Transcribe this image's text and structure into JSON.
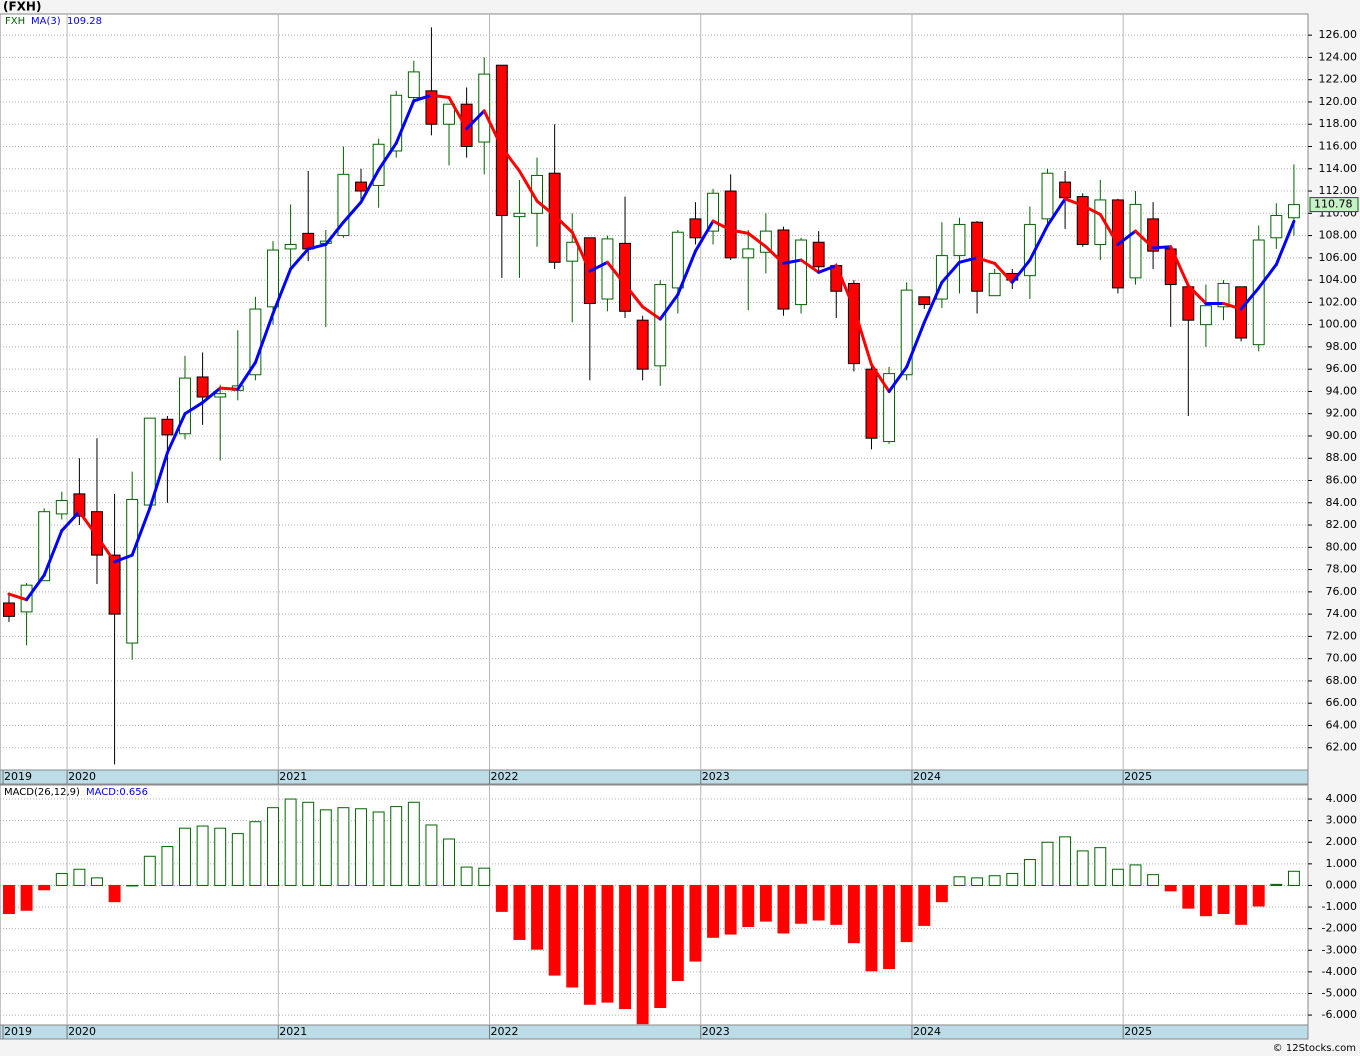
{
  "chart_data": [
    {
      "type": "candlestick",
      "title": "(FXH)",
      "xlim": [
        -0.51,
        73.8
      ],
      "xticks": [
        {
          "value": -0.34,
          "label": "2019"
        },
        {
          "value": 3.3,
          "label": "2020"
        },
        {
          "value": 15.3,
          "label": "2021"
        },
        {
          "value": 27.3,
          "label": "2022"
        },
        {
          "value": 39.3,
          "label": "2023"
        },
        {
          "value": 51.3,
          "label": "2024"
        },
        {
          "value": 63.3,
          "label": "2025"
        }
      ],
      "ylim": [
        60,
        127.9
      ],
      "yticks": [
        {
          "value": 62,
          "label": "62.00"
        },
        {
          "value": 64,
          "label": "64.00"
        },
        {
          "value": 66,
          "label": "66.00"
        },
        {
          "value": 68,
          "label": "68.00"
        },
        {
          "value": 70,
          "label": "70.00"
        },
        {
          "value": 72,
          "label": "72.00"
        },
        {
          "value": 74,
          "label": "74.00"
        },
        {
          "value": 76,
          "label": "76.00"
        },
        {
          "value": 78,
          "label": "78.00"
        },
        {
          "value": 80,
          "label": "80.00"
        },
        {
          "value": 82,
          "label": "82.00"
        },
        {
          "value": 84,
          "label": "84.00"
        },
        {
          "value": 86,
          "label": "86.00"
        },
        {
          "value": 88,
          "label": "88.00"
        },
        {
          "value": 90,
          "label": "90.00"
        },
        {
          "value": 92,
          "label": "92.00"
        },
        {
          "value": 94,
          "label": "94.00"
        },
        {
          "value": 96,
          "label": "96.00"
        },
        {
          "value": 98,
          "label": "98.00"
        },
        {
          "value": 100,
          "label": "100.00"
        },
        {
          "value": 102,
          "label": "102.00"
        },
        {
          "value": 104,
          "label": "104.00"
        },
        {
          "value": 106,
          "label": "106.00"
        },
        {
          "value": 108,
          "label": "108.00"
        },
        {
          "value": 110,
          "label": "110.00"
        },
        {
          "value": 112,
          "label": "112.00"
        },
        {
          "value": 114,
          "label": "114.00"
        },
        {
          "value": 116,
          "label": "116.00"
        },
        {
          "value": 118,
          "label": "118.00"
        },
        {
          "value": 120,
          "label": "120.00"
        },
        {
          "value": 122,
          "label": "122.00"
        },
        {
          "value": 124,
          "label": "124.00"
        },
        {
          "value": 126,
          "label": "126.00"
        }
      ],
      "grid": true,
      "series": [
        {
          "name": "FXH",
          "up_color": "#006400",
          "down_color": "#ff0000",
          "open": [
            75,
            74.2,
            77,
            83,
            84.8,
            83.2,
            79.3,
            71.4,
            83.8,
            91.5,
            90.2,
            95.3,
            93.5,
            94.1,
            95.5,
            101.6,
            106.8,
            108.2,
            107.3,
            108,
            112.8,
            112.5,
            115.6,
            120.4,
            121,
            118,
            119.8,
            116.4,
            123.3,
            109.7,
            110,
            113.6,
            105.7,
            107.8,
            102.3,
            107.3,
            100.4,
            96.3,
            103.3,
            109.5,
            108.4,
            112,
            106,
            106.5,
            108.5,
            101.8,
            107.4,
            105.3,
            103.7,
            96,
            89.5,
            95.5,
            102.5,
            102.3,
            106.2,
            109.2,
            102.6,
            104.6,
            104.4,
            109.5,
            112.8,
            111.5,
            107.2,
            111.2,
            104.2,
            109.5,
            106.8,
            103.4,
            100,
            101.6,
            103.4,
            98.2,
            107.8,
            109.6
          ],
          "high": [
            75.8,
            76.8,
            83.5,
            85,
            88,
            89.8,
            84.8,
            86.8,
            91.6,
            91.8,
            97.2,
            97.5,
            94.6,
            99.5,
            102.5,
            107.5,
            110.8,
            113.8,
            108.5,
            116,
            114,
            116.7,
            121,
            123.7,
            126.7,
            119.8,
            121.3,
            124,
            123.3,
            113,
            115,
            118,
            110,
            107.8,
            108,
            111.5,
            100.8,
            104,
            108.5,
            111,
            112.2,
            113.5,
            108.5,
            110,
            108.8,
            107.8,
            108.4,
            105.5,
            104,
            96.5,
            96.2,
            103.8,
            102.5,
            109.2,
            109.6,
            109.3,
            105,
            105,
            110.6,
            114,
            113.8,
            111.8,
            113,
            111.3,
            112,
            111,
            107,
            103.6,
            103.6,
            104,
            103.4,
            108.9,
            110.9,
            114.4
          ],
          "low": [
            73.3,
            71.2,
            77,
            82.5,
            82,
            76.7,
            60.5,
            69.9,
            83.5,
            84,
            89.7,
            91,
            87.8,
            93.2,
            95,
            100,
            105.2,
            105.7,
            99.8,
            107.8,
            111,
            110.5,
            115,
            119.8,
            117,
            114.3,
            115,
            113.5,
            104.2,
            104.2,
            107,
            105,
            100.2,
            95,
            101.2,
            100.6,
            95,
            94.5,
            101,
            107.2,
            107.2,
            105.8,
            101.3,
            104.6,
            100.8,
            101,
            104.7,
            100.6,
            95.8,
            88.8,
            89.3,
            95,
            101.4,
            101.5,
            102.8,
            101,
            102.6,
            103.2,
            102.3,
            109,
            108.6,
            107,
            105.8,
            102.8,
            103.6,
            105,
            99.8,
            91.8,
            98,
            100.4,
            98.5,
            97.6,
            106.8,
            108
          ],
          "close": [
            73.8,
            76.6,
            83.2,
            84.2,
            82.8,
            79.3,
            74,
            84.3,
            91.6,
            90.1,
            95.2,
            93.5,
            93.8,
            94.5,
            101.4,
            106.7,
            107.2,
            106.8,
            107.5,
            113.5,
            112,
            116.2,
            120.6,
            122.7,
            118,
            119.8,
            116,
            122.5,
            109.8,
            110,
            113.4,
            105.6,
            107.4,
            101.9,
            107.7,
            101.2,
            96,
            103.6,
            108.3,
            107.8,
            111.8,
            106,
            106.8,
            108.4,
            101.4,
            107.6,
            105.2,
            103,
            96.5,
            89.8,
            95.6,
            103.1,
            101.8,
            106.2,
            109,
            103,
            104.6,
            104,
            109,
            113.6,
            111.4,
            107.2,
            111.2,
            103.3,
            110.8,
            106.6,
            103.6,
            100.4,
            101.7,
            103.7,
            98.8,
            107.6,
            109.8,
            110.78
          ]
        },
        {
          "name": "MA(3)",
          "rising_color": "#0000ff",
          "falling_color": "#ff0000",
          "values": [
            75.8,
            75.3,
            77.5,
            81.5,
            83.2,
            81,
            78.7,
            79.3,
            83.5,
            88.5,
            92,
            93,
            94.3,
            94.2,
            96.6,
            101,
            105,
            106.8,
            107.2,
            109.2,
            111,
            113.9,
            116.3,
            120.1,
            120.6,
            120.4,
            117.6,
            119.2,
            115.9,
            113.8,
            111.1,
            109.8,
            108.3,
            104.8,
            105.6,
            103.6,
            101.6,
            100.5,
            102.7,
            106.6,
            109.3,
            108.5,
            108.2,
            107,
            105.5,
            105.8,
            104.7,
            105.3,
            101.5,
            96.4,
            94,
            96.2,
            100.2,
            103.8,
            105.6,
            106,
            105.5,
            103.8,
            105.8,
            108.9,
            111.3,
            110.7,
            109.9,
            107.2,
            108.4,
            106.9,
            107,
            103.5,
            101.9,
            101.9,
            101.4,
            103.3,
            105.4,
            109.28
          ]
        }
      ]
    },
    {
      "type": "bar",
      "title": "MACD(26,12,9)",
      "latest_label": "MACD:0.656",
      "xlim": [
        -0.51,
        73.8
      ],
      "xticks": [
        {
          "value": -0.34,
          "label": "2019"
        },
        {
          "value": 3.3,
          "label": "2020"
        },
        {
          "value": 15.3,
          "label": "2021"
        },
        {
          "value": 27.3,
          "label": "2022"
        },
        {
          "value": 39.3,
          "label": "2023"
        },
        {
          "value": 51.3,
          "label": "2024"
        },
        {
          "value": 63.3,
          "label": "2025"
        }
      ],
      "ylim": [
        -6.46,
        4.65
      ],
      "yticks": [
        {
          "value": 4,
          "label": "4.000"
        },
        {
          "value": 3,
          "label": "3.000"
        },
        {
          "value": 2,
          "label": "2.000"
        },
        {
          "value": 1,
          "label": "1.000"
        },
        {
          "value": 0,
          "label": "0.000"
        },
        {
          "value": -1,
          "label": "-1.000"
        },
        {
          "value": -2,
          "label": "-2.000"
        },
        {
          "value": -3,
          "label": "-3.000"
        },
        {
          "value": -4,
          "label": "-4.000"
        },
        {
          "value": -5,
          "label": "-5.000"
        },
        {
          "value": -6,
          "label": "-6.000"
        }
      ],
      "grid": true,
      "series": [
        {
          "name": "MACD",
          "positive_color": "#006400",
          "negative_color": "#ff0000",
          "values": [
            -1.3,
            -1.15,
            -0.2,
            0.55,
            0.75,
            0.35,
            -0.75,
            0.0,
            1.35,
            1.8,
            2.65,
            2.75,
            2.65,
            2.4,
            2.95,
            3.6,
            4.0,
            3.85,
            3.5,
            3.6,
            3.55,
            3.4,
            3.65,
            3.85,
            2.8,
            2.15,
            0.85,
            0.8,
            -1.2,
            -2.5,
            -2.95,
            -4.15,
            -4.7,
            -5.5,
            -5.4,
            -5.7,
            -6.4,
            -5.65,
            -4.4,
            -3.5,
            -2.4,
            -2.25,
            -1.9,
            -1.65,
            -2.2,
            -1.75,
            -1.6,
            -1.8,
            -2.65,
            -3.95,
            -3.85,
            -2.6,
            -1.85,
            -0.75,
            0.4,
            0.35,
            0.45,
            0.55,
            1.2,
            2.0,
            2.25,
            1.6,
            1.75,
            0.75,
            0.95,
            0.5,
            -0.25,
            -1.05,
            -1.4,
            -1.3,
            -1.8,
            -0.95,
            0.05,
            0.656
          ]
        }
      ]
    },
    {
      "type": "footer",
      "credit": "© 12Stocks.com"
    }
  ]
}
